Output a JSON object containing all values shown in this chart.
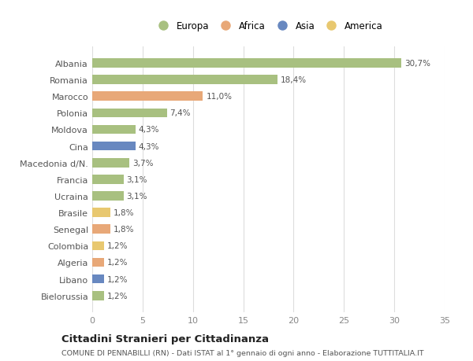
{
  "categories": [
    "Albania",
    "Romania",
    "Marocco",
    "Polonia",
    "Moldova",
    "Cina",
    "Macedonia d/N.",
    "Francia",
    "Ucraina",
    "Brasile",
    "Senegal",
    "Colombia",
    "Algeria",
    "Libano",
    "Bielorussia"
  ],
  "values": [
    30.7,
    18.4,
    11.0,
    7.4,
    4.3,
    4.3,
    3.7,
    3.1,
    3.1,
    1.8,
    1.8,
    1.2,
    1.2,
    1.2,
    1.2
  ],
  "labels": [
    "30,7%",
    "18,4%",
    "11,0%",
    "7,4%",
    "4,3%",
    "4,3%",
    "3,7%",
    "3,1%",
    "3,1%",
    "1,8%",
    "1,8%",
    "1,2%",
    "1,2%",
    "1,2%",
    "1,2%"
  ],
  "colors": [
    "#a8c080",
    "#a8c080",
    "#e8a878",
    "#a8c080",
    "#a8c080",
    "#6888c0",
    "#a8c080",
    "#a8c080",
    "#a8c080",
    "#e8c870",
    "#e8a878",
    "#e8c870",
    "#e8a878",
    "#6888c0",
    "#a8c080"
  ],
  "legend_labels": [
    "Europa",
    "Africa",
    "Asia",
    "America"
  ],
  "legend_colors": [
    "#a8c080",
    "#e8a878",
    "#6888c0",
    "#e8c870"
  ],
  "title": "Cittadini Stranieri per Cittadinanza",
  "subtitle": "COMUNE DI PENNABILLI (RN) - Dati ISTAT al 1° gennaio di ogni anno - Elaborazione TUTTITALIA.IT",
  "xlim": [
    0,
    35
  ],
  "xticks": [
    0,
    5,
    10,
    15,
    20,
    25,
    30,
    35
  ],
  "background_color": "#ffffff",
  "grid_color": "#dddddd",
  "bar_height": 0.55
}
